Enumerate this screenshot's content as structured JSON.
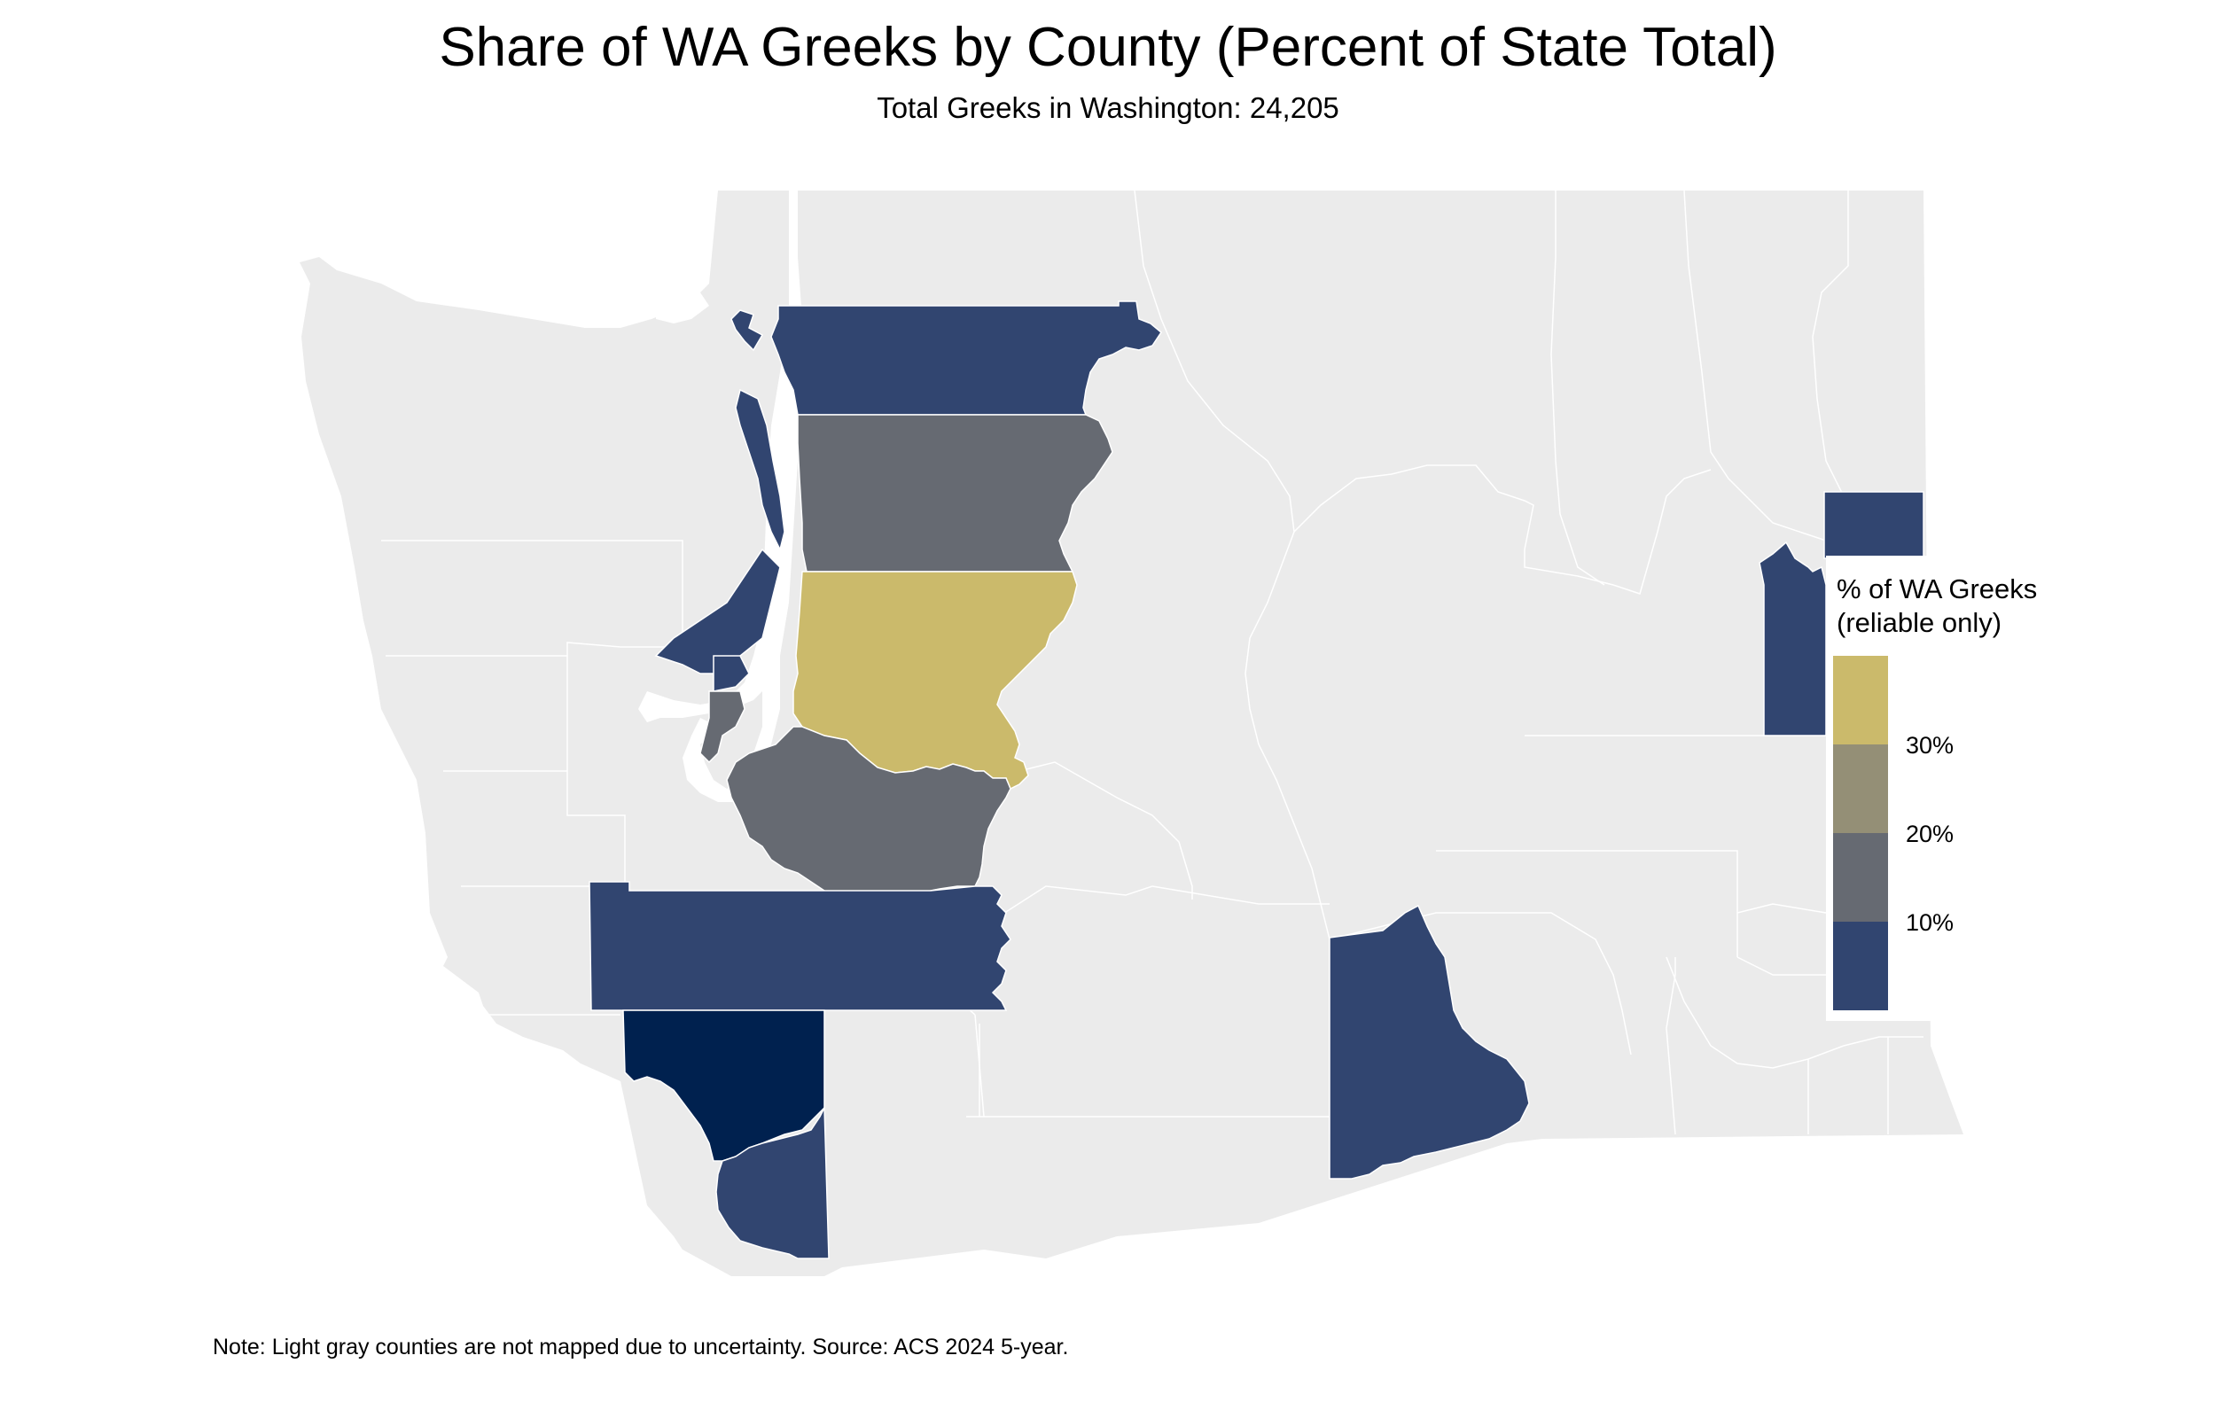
{
  "title": "Share of WA Greeks by County (Percent of State Total)",
  "subtitle": "Total Greeks in Washington: 24,205",
  "caption": "Note: Light gray counties are not mapped due to uncertainty. Source: ACS 2024 5-year.",
  "colors": {
    "background_county": "#ebebeb",
    "border": "#ffffff",
    "scale_low": "#314570",
    "scale_mid": "#666a72",
    "scale_upper_mid": "#948f76",
    "scale_high": "#cbba6b",
    "top_county": "#00214f"
  },
  "legend": {
    "title_line1": "% of WA Greeks",
    "title_line2": "(reliable only)",
    "breaks": [
      "30%",
      "20%",
      "10%"
    ],
    "swatch_colors": [
      "#cbba6b",
      "#948f76",
      "#666a72",
      "#314570"
    ]
  },
  "map_data": {
    "type": "choropleth",
    "region": "Washington State counties",
    "shaded_counties": [
      {
        "shape": "king",
        "color": "#cbba6b",
        "bin": "above 30%"
      },
      {
        "shape": "snohomish",
        "color": "#666a72",
        "bin": "10%-20%"
      },
      {
        "shape": "pierce",
        "color": "#666a72",
        "bin": "10%-20%"
      },
      {
        "shape": "kitsap",
        "color": "#666a72",
        "bin": "10%-20%"
      },
      {
        "shape": "whatcom",
        "color": "#314570",
        "bin": "below 10%"
      },
      {
        "shape": "skagit-islands",
        "color": "#314570",
        "bin": "below 10%"
      },
      {
        "shape": "island",
        "color": "#314570",
        "bin": "below 10%"
      },
      {
        "shape": "thurston-lewis",
        "color": "#314570",
        "bin": "below 10%"
      },
      {
        "shape": "cowlitz-clark-upper",
        "color": "#00214f",
        "bin": "below 10%"
      },
      {
        "shape": "clark",
        "color": "#314570",
        "bin": "below 10%"
      },
      {
        "shape": "benton",
        "color": "#314570",
        "bin": "below 10%"
      },
      {
        "shape": "spokane-north",
        "color": "#314570",
        "bin": "below 10%"
      },
      {
        "shape": "spokane",
        "color": "#314570",
        "bin": "below 10%"
      }
    ]
  }
}
